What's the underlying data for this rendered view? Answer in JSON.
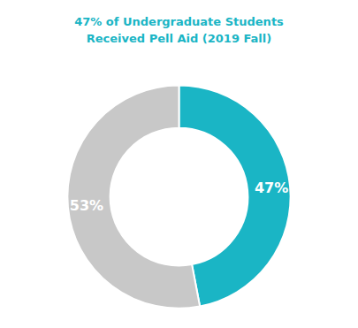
{
  "chart_data": {
    "type": "pie",
    "title": "47% of Undergraduate Students\nReceived Pell Aid (2019 Fall)",
    "values": [
      47,
      53
    ],
    "value_labels": [
      "47%",
      "53%"
    ],
    "colors": [
      "#1ab5c5",
      "#c8c8c8"
    ],
    "data_labels": true
  }
}
